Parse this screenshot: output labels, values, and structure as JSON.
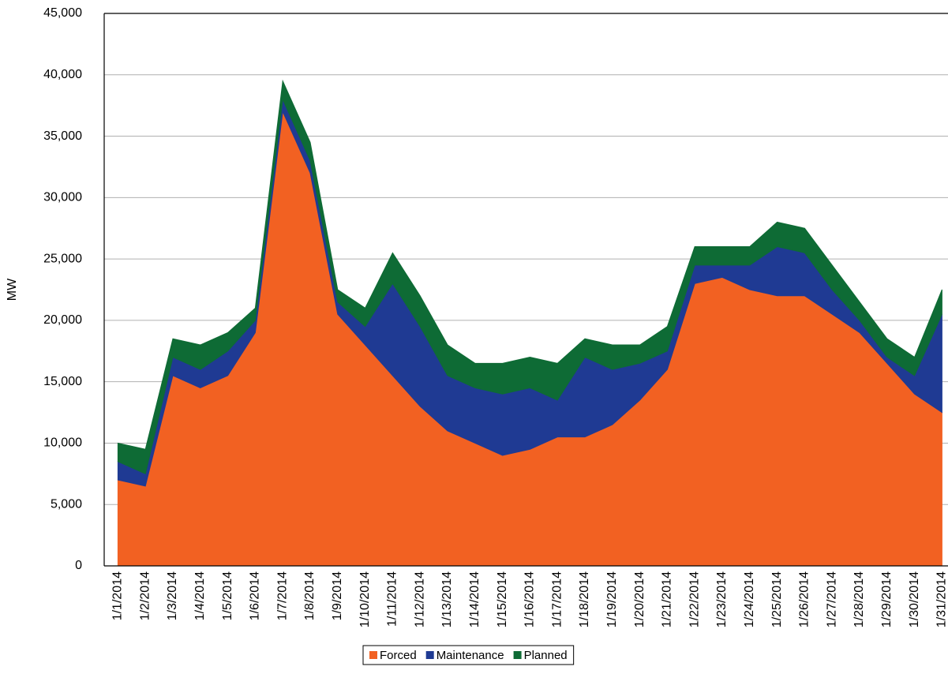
{
  "chart_data": {
    "type": "stacked-area",
    "y_label": "MW",
    "categories": [
      "1/1/2014",
      "1/2/2014",
      "1/3/2014",
      "1/4/2014",
      "1/5/2014",
      "1/6/2014",
      "1/7/2014",
      "1/8/2014",
      "1/9/2014",
      "1/10/2014",
      "1/11/2014",
      "1/12/2014",
      "1/13/2014",
      "1/14/2014",
      "1/15/2014",
      "1/16/2014",
      "1/17/2014",
      "1/18/2014",
      "1/19/2014",
      "1/20/2014",
      "1/21/2014",
      "1/22/2014",
      "1/23/2014",
      "1/24/2014",
      "1/25/2014",
      "1/26/2014",
      "1/27/2014",
      "1/28/2014",
      "1/29/2014",
      "1/30/2014",
      "1/31/2014"
    ],
    "series": [
      {
        "name": "Forced",
        "color": "#f26122",
        "values": [
          7000,
          6500,
          15500,
          14500,
          15500,
          19000,
          37000,
          32000,
          20500,
          18000,
          15500,
          13000,
          11000,
          10000,
          9000,
          9500,
          10500,
          10500,
          11500,
          13500,
          16000,
          23000,
          23500,
          22500,
          22000,
          22000,
          20500,
          19000,
          16500,
          14000,
          12500
        ]
      },
      {
        "name": "Maintenance",
        "color": "#1f3a93",
        "values": [
          1500,
          1000,
          1500,
          1500,
          2000,
          1000,
          1000,
          1000,
          1000,
          1500,
          7500,
          6500,
          4500,
          4500,
          5000,
          5000,
          3000,
          6500,
          4500,
          3000,
          1500,
          1500,
          1000,
          2000,
          4000,
          3500,
          2000,
          1000,
          500,
          1500,
          8000
        ]
      },
      {
        "name": "Planned",
        "color": "#0e6b35",
        "values": [
          1500,
          2000,
          1500,
          2000,
          1500,
          1000,
          1500,
          1500,
          1000,
          1500,
          2500,
          2500,
          2500,
          2000,
          2500,
          2500,
          3000,
          1500,
          2000,
          1500,
          2000,
          1500,
          1500,
          1500,
          2000,
          2000,
          2000,
          1500,
          1500,
          1500,
          2000
        ]
      }
    ],
    "ylim": [
      0,
      45000
    ],
    "yticks": [
      0,
      {
        "value": 5000,
        "label": "5,000"
      },
      {
        "value": 10000,
        "label": "10,000"
      },
      {
        "value": 15000,
        "label": "15,000"
      },
      {
        "value": 20000,
        "label": "20,000"
      },
      {
        "value": 25000,
        "label": "25,000"
      },
      {
        "value": 30000,
        "label": "30,000"
      },
      {
        "value": 35000,
        "label": "35,000"
      },
      {
        "value": 40000,
        "label": "40,000"
      },
      {
        "value": 45000,
        "label": "45,000"
      }
    ],
    "grid": true,
    "legend": "bottom"
  }
}
